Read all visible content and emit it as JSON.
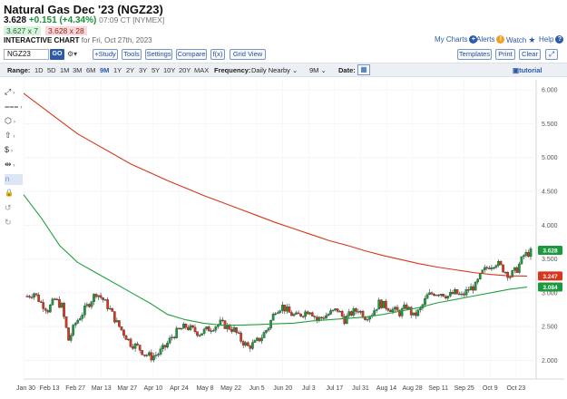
{
  "header": {
    "title": "Natural Gas Dec '23 (NGZ23)",
    "last": "3.628",
    "change": "+0.151 (+4.34%)",
    "time": "07:09 CT [NYMEX]",
    "bid": "3.627 x 7",
    "ask": "3.628 x 28",
    "chart_heading": "INTERACTIVE CHART",
    "chart_heading_sub": " for Fri, Oct 27th, 2023"
  },
  "top_links": {
    "my_charts": "My Charts",
    "alerts": "Alerts",
    "watch": "Watch",
    "help": "Help"
  },
  "controls": {
    "symbol": "NGZ23",
    "go": "GO",
    "study": "+Study",
    "tools": "Tools",
    "settings": "Settings",
    "compare": "Compare",
    "fx": "f(x)",
    "grid_view": "Grid View",
    "templates": "Templates",
    "print": "Print",
    "clear": "Clear",
    "tutorial": "tutorial"
  },
  "toolbar": {
    "range_label": "Range:",
    "ranges": [
      "1D",
      "5D",
      "1M",
      "3M",
      "6M",
      "9M",
      "1Y",
      "2Y",
      "3Y",
      "5Y",
      "10Y",
      "20Y",
      "MAX"
    ],
    "selected_range": "9M",
    "frequency_label": "Frequency:",
    "frequency_value": "Daily Nearby",
    "period_value": "9M",
    "date_label": "Date:"
  },
  "chart_data": {
    "type": "candlestick",
    "ylim": [
      1.75,
      6.15
    ],
    "yticks": [
      "6.000",
      "5.500",
      "5.000",
      "4.500",
      "4.000",
      "3.500",
      "3.000",
      "2.500",
      "2.000"
    ],
    "xlabels": [
      "Jan 30",
      "Feb 13",
      "Feb 27",
      "Mar 13",
      "Mar 27",
      "Apr 10",
      "Apr 24",
      "May 8",
      "May 22",
      "Jun 5",
      "Jun 20",
      "Jul 3",
      "Jul 17",
      "Jul 31",
      "Aug 14",
      "Aug 28",
      "Sep 11",
      "Sep 25",
      "Oct 9",
      "Oct 23"
    ],
    "close_series": [
      2.95,
      3.0,
      2.85,
      2.75,
      2.9,
      2.8,
      2.3,
      2.55,
      2.7,
      2.85,
      3.0,
      2.9,
      2.75,
      2.55,
      2.4,
      2.25,
      2.2,
      2.1,
      2.05,
      2.1,
      2.2,
      2.35,
      2.45,
      2.5,
      2.45,
      2.4,
      2.45,
      2.5,
      2.55,
      2.5,
      2.45,
      2.3,
      2.2,
      2.25,
      2.35,
      2.5,
      2.75,
      2.8,
      2.7,
      2.65,
      2.7,
      2.75,
      2.6,
      2.65,
      2.7,
      2.75,
      2.6,
      2.7,
      2.75,
      2.65,
      2.7,
      2.85,
      2.8,
      2.75,
      2.7,
      2.8,
      2.65,
      2.75,
      2.95,
      3.0,
      3.0,
      2.95,
      3.0,
      2.95,
      3.05,
      3.1,
      3.3,
      3.4,
      3.45,
      3.35,
      3.25,
      3.35,
      3.55,
      3.6
    ],
    "moving_averages": [
      {
        "color": "#d9351c",
        "points": [
          5.95,
          5.75,
          5.55,
          5.35,
          5.2,
          5.05,
          4.9,
          4.78,
          4.66,
          4.55,
          4.44,
          4.34,
          4.24,
          4.14,
          4.04,
          3.95,
          3.86,
          3.77,
          3.7,
          3.62,
          3.55,
          3.49,
          3.43,
          3.38,
          3.34,
          3.3,
          3.27,
          3.25,
          3.247
        ]
      },
      {
        "color": "#23a040",
        "points": [
          4.45,
          4.1,
          3.7,
          3.45,
          3.3,
          3.15,
          3.0,
          2.85,
          2.68,
          2.6,
          2.55,
          2.52,
          2.52,
          2.53,
          2.54,
          2.55,
          2.58,
          2.6,
          2.62,
          2.64,
          2.68,
          2.73,
          2.78,
          2.85,
          2.9,
          2.95,
          3.0,
          3.05,
          3.084
        ]
      }
    ],
    "price_badges": [
      {
        "value": 3.628,
        "text": "3.628",
        "color": "#1a9a3c"
      },
      {
        "value": 3.247,
        "text": "3.247",
        "color": "#d9351c"
      },
      {
        "value": 3.084,
        "text": "3.084",
        "color": "#1a9a3c"
      }
    ]
  },
  "draw_tools": [
    {
      "name": "line-tool-icon",
      "glyph": "⤢"
    },
    {
      "name": "fib-tool-icon",
      "glyph": "⩶"
    },
    {
      "name": "shapes-tool-icon",
      "glyph": "⬡"
    },
    {
      "name": "arrow-tool-icon",
      "glyph": "⇧"
    },
    {
      "name": "dollar-tool-icon",
      "glyph": "$"
    },
    {
      "name": "measure-tool-icon",
      "glyph": "⇹"
    },
    {
      "name": "magnet-icon",
      "glyph": "∩"
    },
    {
      "name": "lock-icon",
      "glyph": "🔒"
    },
    {
      "name": "undo-icon",
      "glyph": "↺"
    },
    {
      "name": "redo-icon",
      "glyph": "↻"
    }
  ]
}
